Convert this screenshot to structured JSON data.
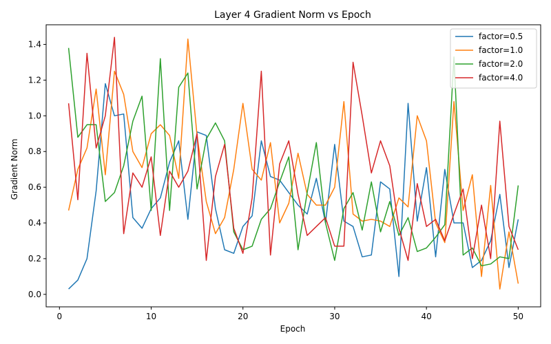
{
  "chart_data": {
    "type": "line",
    "title": "Layer 4 Gradient Norm vs Epoch",
    "xlabel": "Epoch",
    "ylabel": "Gradient Norm",
    "xlim": [
      -1.45,
      52.45
    ],
    "ylim": [
      -0.07,
      1.51
    ],
    "xticks": [
      0,
      10,
      20,
      30,
      40,
      50
    ],
    "yticks": [
      0.0,
      0.2,
      0.4,
      0.6,
      0.8,
      1.0,
      1.2,
      1.4
    ],
    "ytick_labels": [
      "0.0",
      "0.2",
      "0.4",
      "0.6",
      "0.8",
      "1.0",
      "1.2",
      "1.4"
    ],
    "grid": false,
    "legend_position": "top-right",
    "x": [
      1,
      2,
      3,
      4,
      5,
      6,
      7,
      8,
      9,
      10,
      11,
      12,
      13,
      14,
      15,
      16,
      17,
      18,
      19,
      20,
      21,
      22,
      23,
      24,
      25,
      26,
      27,
      28,
      29,
      30,
      31,
      32,
      33,
      34,
      35,
      36,
      37,
      38,
      39,
      40,
      41,
      42,
      43,
      44,
      45,
      46,
      47,
      48,
      49,
      50
    ],
    "series": [
      {
        "name": "factor=0.5",
        "color": "#1f77b4",
        "values": [
          0.03,
          0.08,
          0.2,
          0.58,
          1.18,
          1.0,
          1.01,
          0.43,
          0.37,
          0.48,
          0.54,
          0.74,
          0.86,
          0.42,
          0.91,
          0.89,
          0.48,
          0.25,
          0.23,
          0.38,
          0.44,
          0.86,
          0.66,
          0.64,
          0.57,
          0.5,
          0.45,
          0.65,
          0.4,
          0.84,
          0.41,
          0.38,
          0.21,
          0.22,
          0.63,
          0.59,
          0.1,
          1.07,
          0.41,
          0.71,
          0.21,
          0.7,
          0.4,
          0.4,
          0.15,
          0.19,
          0.3,
          0.56,
          0.15,
          0.42
        ]
      },
      {
        "name": "factor=1.0",
        "color": "#ff7f0e",
        "values": [
          0.47,
          0.7,
          0.82,
          1.15,
          0.67,
          1.25,
          1.12,
          0.8,
          0.71,
          0.9,
          0.95,
          0.89,
          0.65,
          1.43,
          0.89,
          0.52,
          0.34,
          0.43,
          0.7,
          1.07,
          0.7,
          0.64,
          0.85,
          0.4,
          0.51,
          0.79,
          0.56,
          0.5,
          0.5,
          0.6,
          1.08,
          0.45,
          0.41,
          0.42,
          0.41,
          0.38,
          0.54,
          0.49,
          1.0,
          0.86,
          0.4,
          0.29,
          1.08,
          0.47,
          0.67,
          0.1,
          0.61,
          0.03,
          0.35,
          0.06
        ]
      },
      {
        "name": "factor=2.0",
        "color": "#2ca02c",
        "values": [
          1.38,
          0.88,
          0.95,
          0.95,
          0.52,
          0.57,
          0.72,
          0.97,
          1.11,
          0.47,
          1.32,
          0.47,
          1.16,
          1.24,
          0.59,
          0.87,
          0.96,
          0.86,
          0.35,
          0.25,
          0.27,
          0.42,
          0.48,
          0.63,
          0.77,
          0.25,
          0.57,
          0.85,
          0.4,
          0.19,
          0.48,
          0.57,
          0.36,
          0.63,
          0.35,
          0.52,
          0.33,
          0.43,
          0.24,
          0.26,
          0.32,
          0.39,
          1.33,
          0.22,
          0.26,
          0.16,
          0.17,
          0.21,
          0.2,
          0.61
        ]
      },
      {
        "name": "factor=4.0",
        "color": "#d62728",
        "values": [
          1.07,
          0.53,
          1.35,
          0.82,
          1.0,
          1.44,
          0.34,
          0.68,
          0.6,
          0.77,
          0.33,
          0.69,
          0.6,
          0.69,
          0.9,
          0.19,
          0.66,
          0.84,
          0.37,
          0.23,
          0.54,
          1.25,
          0.22,
          0.73,
          0.86,
          0.56,
          0.33,
          0.38,
          0.43,
          0.27,
          0.27,
          1.3,
          1.0,
          0.68,
          0.86,
          0.72,
          0.37,
          0.19,
          0.62,
          0.38,
          0.42,
          0.3,
          0.45,
          0.59,
          0.2,
          0.5,
          0.2,
          0.97,
          0.38,
          0.25
        ]
      }
    ]
  }
}
